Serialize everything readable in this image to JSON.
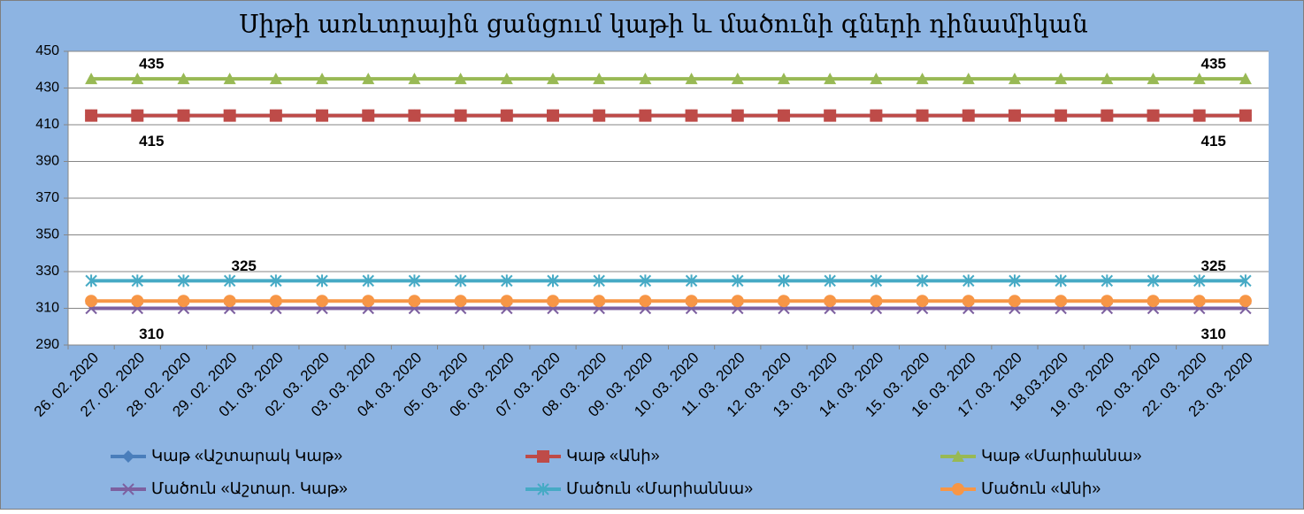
{
  "chart_data": {
    "type": "line",
    "title": "Սիթի առևտրային ցանցում կաթի և մածունի գների դինամիկան",
    "categories": [
      "26. 02. 2020",
      "27. 02. 2020",
      "28. 02. 2020",
      "29. 02. 2020",
      "01. 03. 2020",
      "02. 03. 2020",
      "03. 03. 2020",
      "04. 03. 2020",
      "05. 03. 2020",
      "06. 03. 2020",
      "07. 03. 2020",
      "08. 03. 2020",
      "09. 03. 2020",
      "10. 03. 2020",
      "11. 03. 2020",
      "12. 03. 2020",
      "13. 03. 2020",
      "14. 03. 2020",
      "15. 03. 2020",
      "16. 03. 2020",
      "17. 03. 2020",
      "18.03.2020",
      "19. 03. 2020",
      "20. 03. 2020",
      "22. 03. 2020",
      "23. 03. 2020"
    ],
    "ylim": [
      290,
      450
    ],
    "yticks": [
      290,
      310,
      330,
      350,
      370,
      390,
      410,
      430,
      450
    ],
    "grid": true,
    "legend_position": "bottom",
    "series": [
      {
        "name": "Կաթ «Աշտարակ Կաթ»",
        "color": "#4a7ebb",
        "marker": "diamond",
        "values": [
          415,
          415,
          415,
          415,
          415,
          415,
          415,
          415,
          415,
          415,
          415,
          415,
          415,
          415,
          415,
          415,
          415,
          415,
          415,
          415,
          415,
          415,
          415,
          415,
          415,
          415
        ]
      },
      {
        "name": "Կաթ «Անի»",
        "color": "#be4b48",
        "marker": "square",
        "label_position": "below",
        "labels_at": [
          1,
          24
        ],
        "values": [
          415,
          415,
          415,
          415,
          415,
          415,
          415,
          415,
          415,
          415,
          415,
          415,
          415,
          415,
          415,
          415,
          415,
          415,
          415,
          415,
          415,
          415,
          415,
          415,
          415,
          415
        ]
      },
      {
        "name": "Կաթ «Մարիաննա»",
        "color": "#98b954",
        "marker": "triangle",
        "label_position": "above",
        "labels_at": [
          1,
          24
        ],
        "values": [
          435,
          435,
          435,
          435,
          435,
          435,
          435,
          435,
          435,
          435,
          435,
          435,
          435,
          435,
          435,
          435,
          435,
          435,
          435,
          435,
          435,
          435,
          435,
          435,
          435,
          435
        ]
      },
      {
        "name": "Մածուն «Աշտար. Կաթ»",
        "color": "#7d60a0",
        "marker": "x",
        "label_position": "below",
        "labels_at": [
          1,
          24
        ],
        "values": [
          310,
          310,
          310,
          310,
          310,
          310,
          310,
          310,
          310,
          310,
          310,
          310,
          310,
          310,
          310,
          310,
          310,
          310,
          310,
          310,
          310,
          310,
          310,
          310,
          310,
          310
        ]
      },
      {
        "name": "Մածուն «Մարիաննա»",
        "color": "#46aac5",
        "marker": "star",
        "label_position": "above",
        "labels_at": [
          3,
          24
        ],
        "values": [
          325,
          325,
          325,
          325,
          325,
          325,
          325,
          325,
          325,
          325,
          325,
          325,
          325,
          325,
          325,
          325,
          325,
          325,
          325,
          325,
          325,
          325,
          325,
          325,
          325,
          325
        ]
      },
      {
        "name": "Մածուն «Անի»",
        "color": "#f79646",
        "marker": "circle",
        "values": [
          314,
          314,
          314,
          314,
          314,
          314,
          314,
          314,
          314,
          314,
          314,
          314,
          314,
          314,
          314,
          314,
          314,
          314,
          314,
          314,
          314,
          314,
          314,
          314,
          314,
          314
        ]
      }
    ]
  }
}
